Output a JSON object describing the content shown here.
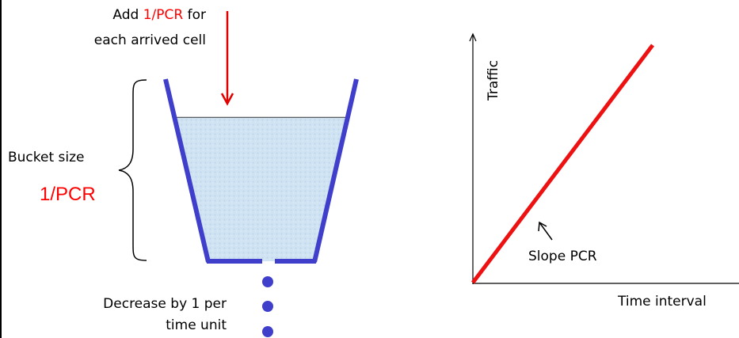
{
  "bucket": {
    "add_prefix": "Add ",
    "add_highlight": "1/PCR",
    "add_suffix": " for",
    "add_line2": "each arrived cell",
    "size_label": "Bucket size",
    "size_value": "1/PCR",
    "decrease_line1": "Decrease by 1 per",
    "decrease_line2": "time unit",
    "fill_level": 0.79
  },
  "graph": {
    "y_label": "Traffic",
    "x_label": "Time interval",
    "slope_label": "Slope PCR"
  },
  "colors": {
    "bucket_wall": "#3f3fcc",
    "water": "#cfe3f3",
    "water_line": "#333333",
    "drop": "#3f3fcc",
    "arrow": "#e00000",
    "traffic_line": "#ee1111",
    "axis": "#000000"
  }
}
